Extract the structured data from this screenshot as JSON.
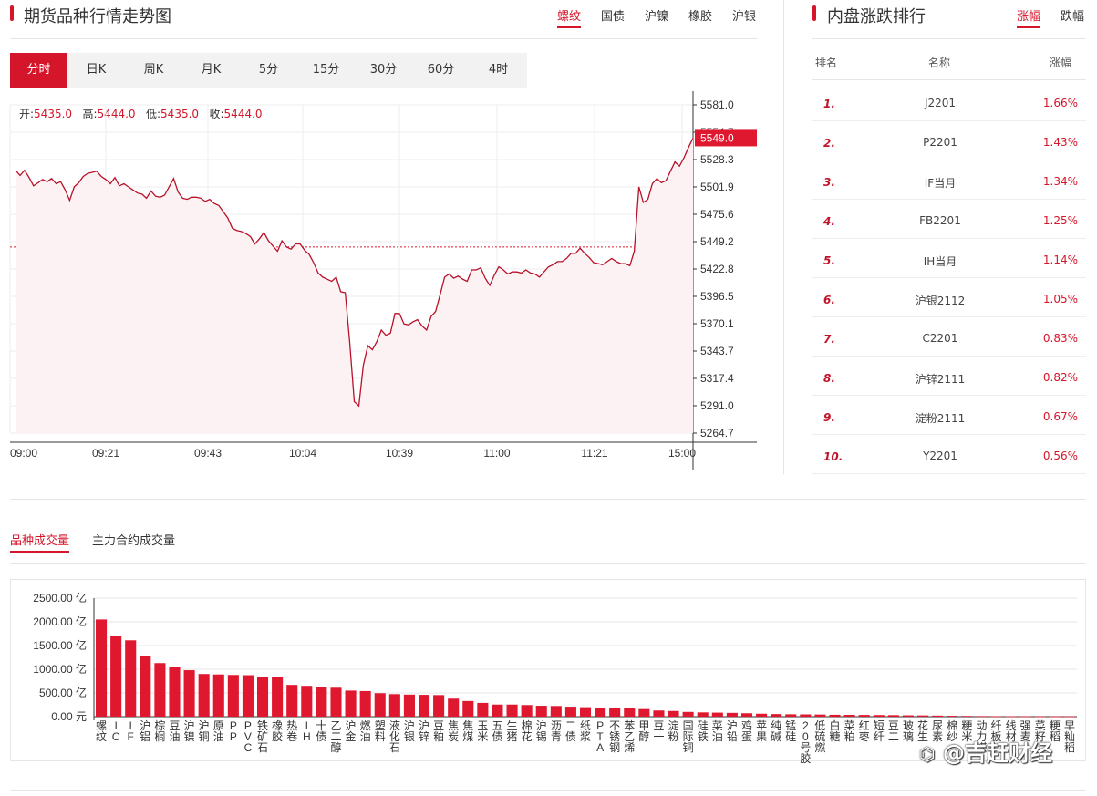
{
  "left_panel": {
    "title": "期货品种行情走势图",
    "tabs": [
      "螺纹",
      "国债",
      "沪镍",
      "橡胶",
      "沪银"
    ],
    "active_tab": "螺纹",
    "periods": [
      "分时",
      "日K",
      "周K",
      "月K",
      "5分",
      "15分",
      "30分",
      "60分",
      "4时"
    ],
    "active_period": "分时",
    "ohlc": {
      "open_label": "开:",
      "open": "5435.0",
      "high_label": "高:",
      "high": "5444.0",
      "low_label": "低:",
      "low": "5435.0",
      "close_label": "收:",
      "close": "5444.0"
    },
    "price_tag": "5549.0"
  },
  "right_panel": {
    "title": "内盘涨跌排行",
    "tabs": [
      "涨幅",
      "跌幅"
    ],
    "active_tab": "涨幅",
    "headers": {
      "rank": "排名",
      "name": "名称",
      "change": "涨幅"
    },
    "rows": [
      {
        "rank": "1.",
        "name": "J2201",
        "change": "1.66%"
      },
      {
        "rank": "2.",
        "name": "P2201",
        "change": "1.43%"
      },
      {
        "rank": "3.",
        "name": "IF当月",
        "change": "1.34%"
      },
      {
        "rank": "4.",
        "name": "FB2201",
        "change": "1.25%"
      },
      {
        "rank": "5.",
        "name": "IH当月",
        "change": "1.14%"
      },
      {
        "rank": "6.",
        "name": "沪银2112",
        "change": "1.05%"
      },
      {
        "rank": "7.",
        "name": "C2201",
        "change": "0.83%"
      },
      {
        "rank": "8.",
        "name": "沪锌2111",
        "change": "0.82%"
      },
      {
        "rank": "9.",
        "name": "淀粉2111",
        "change": "0.67%"
      },
      {
        "rank": "10.",
        "name": "Y2201",
        "change": "0.56%"
      }
    ]
  },
  "volume_section": {
    "tabs": [
      "品种成交量",
      "主力合约成交量"
    ],
    "active_tab": "品种成交量",
    "watermark": "@吉赶财经"
  },
  "colors": {
    "accent": "#d5152a",
    "bar": "#e0182f",
    "grid": "#e6e6e6"
  },
  "chart_data": [
    {
      "type": "line",
      "yticks": [
        "5581.0",
        "5554.7",
        "5528.3",
        "5501.9",
        "5475.6",
        "5449.2",
        "5422.8",
        "5396.5",
        "5370.1",
        "5343.7",
        "5317.4",
        "5291.0",
        "5264.7"
      ],
      "ylim": [
        5264.7,
        5581.0
      ],
      "reference_line": 5444.0,
      "xticks": [
        "09:00",
        "09:21",
        "09:43",
        "10:04",
        "10:39",
        "11:00",
        "11:21",
        "15:00"
      ],
      "values": [
        5518,
        5513,
        5518,
        5511,
        5503,
        5506,
        5509,
        5507,
        5510,
        5505,
        5507,
        5499,
        5489,
        5502,
        5506,
        5512,
        5515,
        5516,
        5517,
        5512,
        5509,
        5505,
        5511,
        5503,
        5505,
        5502,
        5499,
        5496,
        5495,
        5491,
        5498,
        5493,
        5492,
        5494,
        5502,
        5510,
        5497,
        5491,
        5490,
        5492,
        5492,
        5491,
        5488,
        5490,
        5486,
        5484,
        5478,
        5472,
        5462,
        5460,
        5459,
        5457,
        5454,
        5447,
        5452,
        5458,
        5450,
        5445,
        5440,
        5450,
        5444,
        5442,
        5447,
        5447,
        5441,
        5437,
        5429,
        5419,
        5415,
        5413,
        5411,
        5415,
        5401,
        5400,
        5352,
        5295,
        5291,
        5330,
        5349,
        5345,
        5353,
        5364,
        5359,
        5361,
        5380,
        5380,
        5370,
        5369,
        5372,
        5374,
        5368,
        5364,
        5377,
        5382,
        5398,
        5415,
        5418,
        5414,
        5416,
        5413,
        5411,
        5422,
        5422,
        5424,
        5414,
        5407,
        5417,
        5425,
        5422,
        5418,
        5420,
        5420,
        5419,
        5422,
        5419,
        5418,
        5415,
        5420,
        5425,
        5427,
        5430,
        5430,
        5433,
        5438,
        5438,
        5443,
        5438,
        5434,
        5429,
        5428,
        5427,
        5430,
        5433,
        5430,
        5428,
        5428,
        5426,
        5440,
        5502,
        5487,
        5490,
        5505,
        5510,
        5506,
        5508,
        5517,
        5526,
        5522,
        5530,
        5540,
        5549
      ]
    },
    {
      "type": "bar",
      "yticks": [
        "2500.00 亿",
        "2000.00 亿",
        "1500.00 亿",
        "1000.00 亿",
        "500.00 亿",
        "0.00 元"
      ],
      "ylim": [
        0,
        2500
      ],
      "categories": [
        "螺纹",
        "IC",
        "IF",
        "沪铝",
        "棕榈",
        "豆油",
        "沪镍",
        "沪铜",
        "原油",
        "PP",
        "PVC",
        "铁矿石",
        "橡胶",
        "热卷",
        "IH",
        "十债",
        "乙二醇",
        "沪金",
        "燃油",
        "塑料",
        "液化石",
        "沪银",
        "沪锌",
        "豆粕",
        "焦炭",
        "焦煤",
        "玉米",
        "五债",
        "生猪",
        "棉花",
        "沪锡",
        "沥青",
        "二债",
        "纸浆",
        "PTA",
        "不锈钢",
        "苯乙烯",
        "甲醇",
        "豆一",
        "淀粉",
        "国际铜",
        "硅铁",
        "菜油",
        "沪铅",
        "鸡蛋",
        "苹果",
        "纯碱",
        "锰硅",
        "20号胶",
        "低硫燃",
        "白糖",
        "菜粕",
        "红枣",
        "短纤",
        "豆二",
        "玻璃",
        "花生",
        "尿素",
        "棉纱",
        "粳米",
        "动力煤",
        "纤板",
        "线材",
        "强麦",
        "菜籽",
        "粳稻",
        "早籼稻"
      ],
      "values": [
        2050,
        1700,
        1610,
        1280,
        1130,
        1050,
        980,
        900,
        890,
        880,
        875,
        845,
        835,
        670,
        650,
        620,
        610,
        550,
        540,
        495,
        475,
        465,
        460,
        455,
        380,
        330,
        290,
        255,
        255,
        245,
        230,
        225,
        210,
        200,
        190,
        185,
        180,
        160,
        130,
        120,
        100,
        90,
        85,
        80,
        72,
        62,
        55,
        50,
        48,
        45,
        40,
        38,
        36,
        34,
        32,
        28,
        26,
        22,
        18,
        15,
        12,
        10,
        9,
        8,
        7,
        6,
        5
      ]
    }
  ]
}
